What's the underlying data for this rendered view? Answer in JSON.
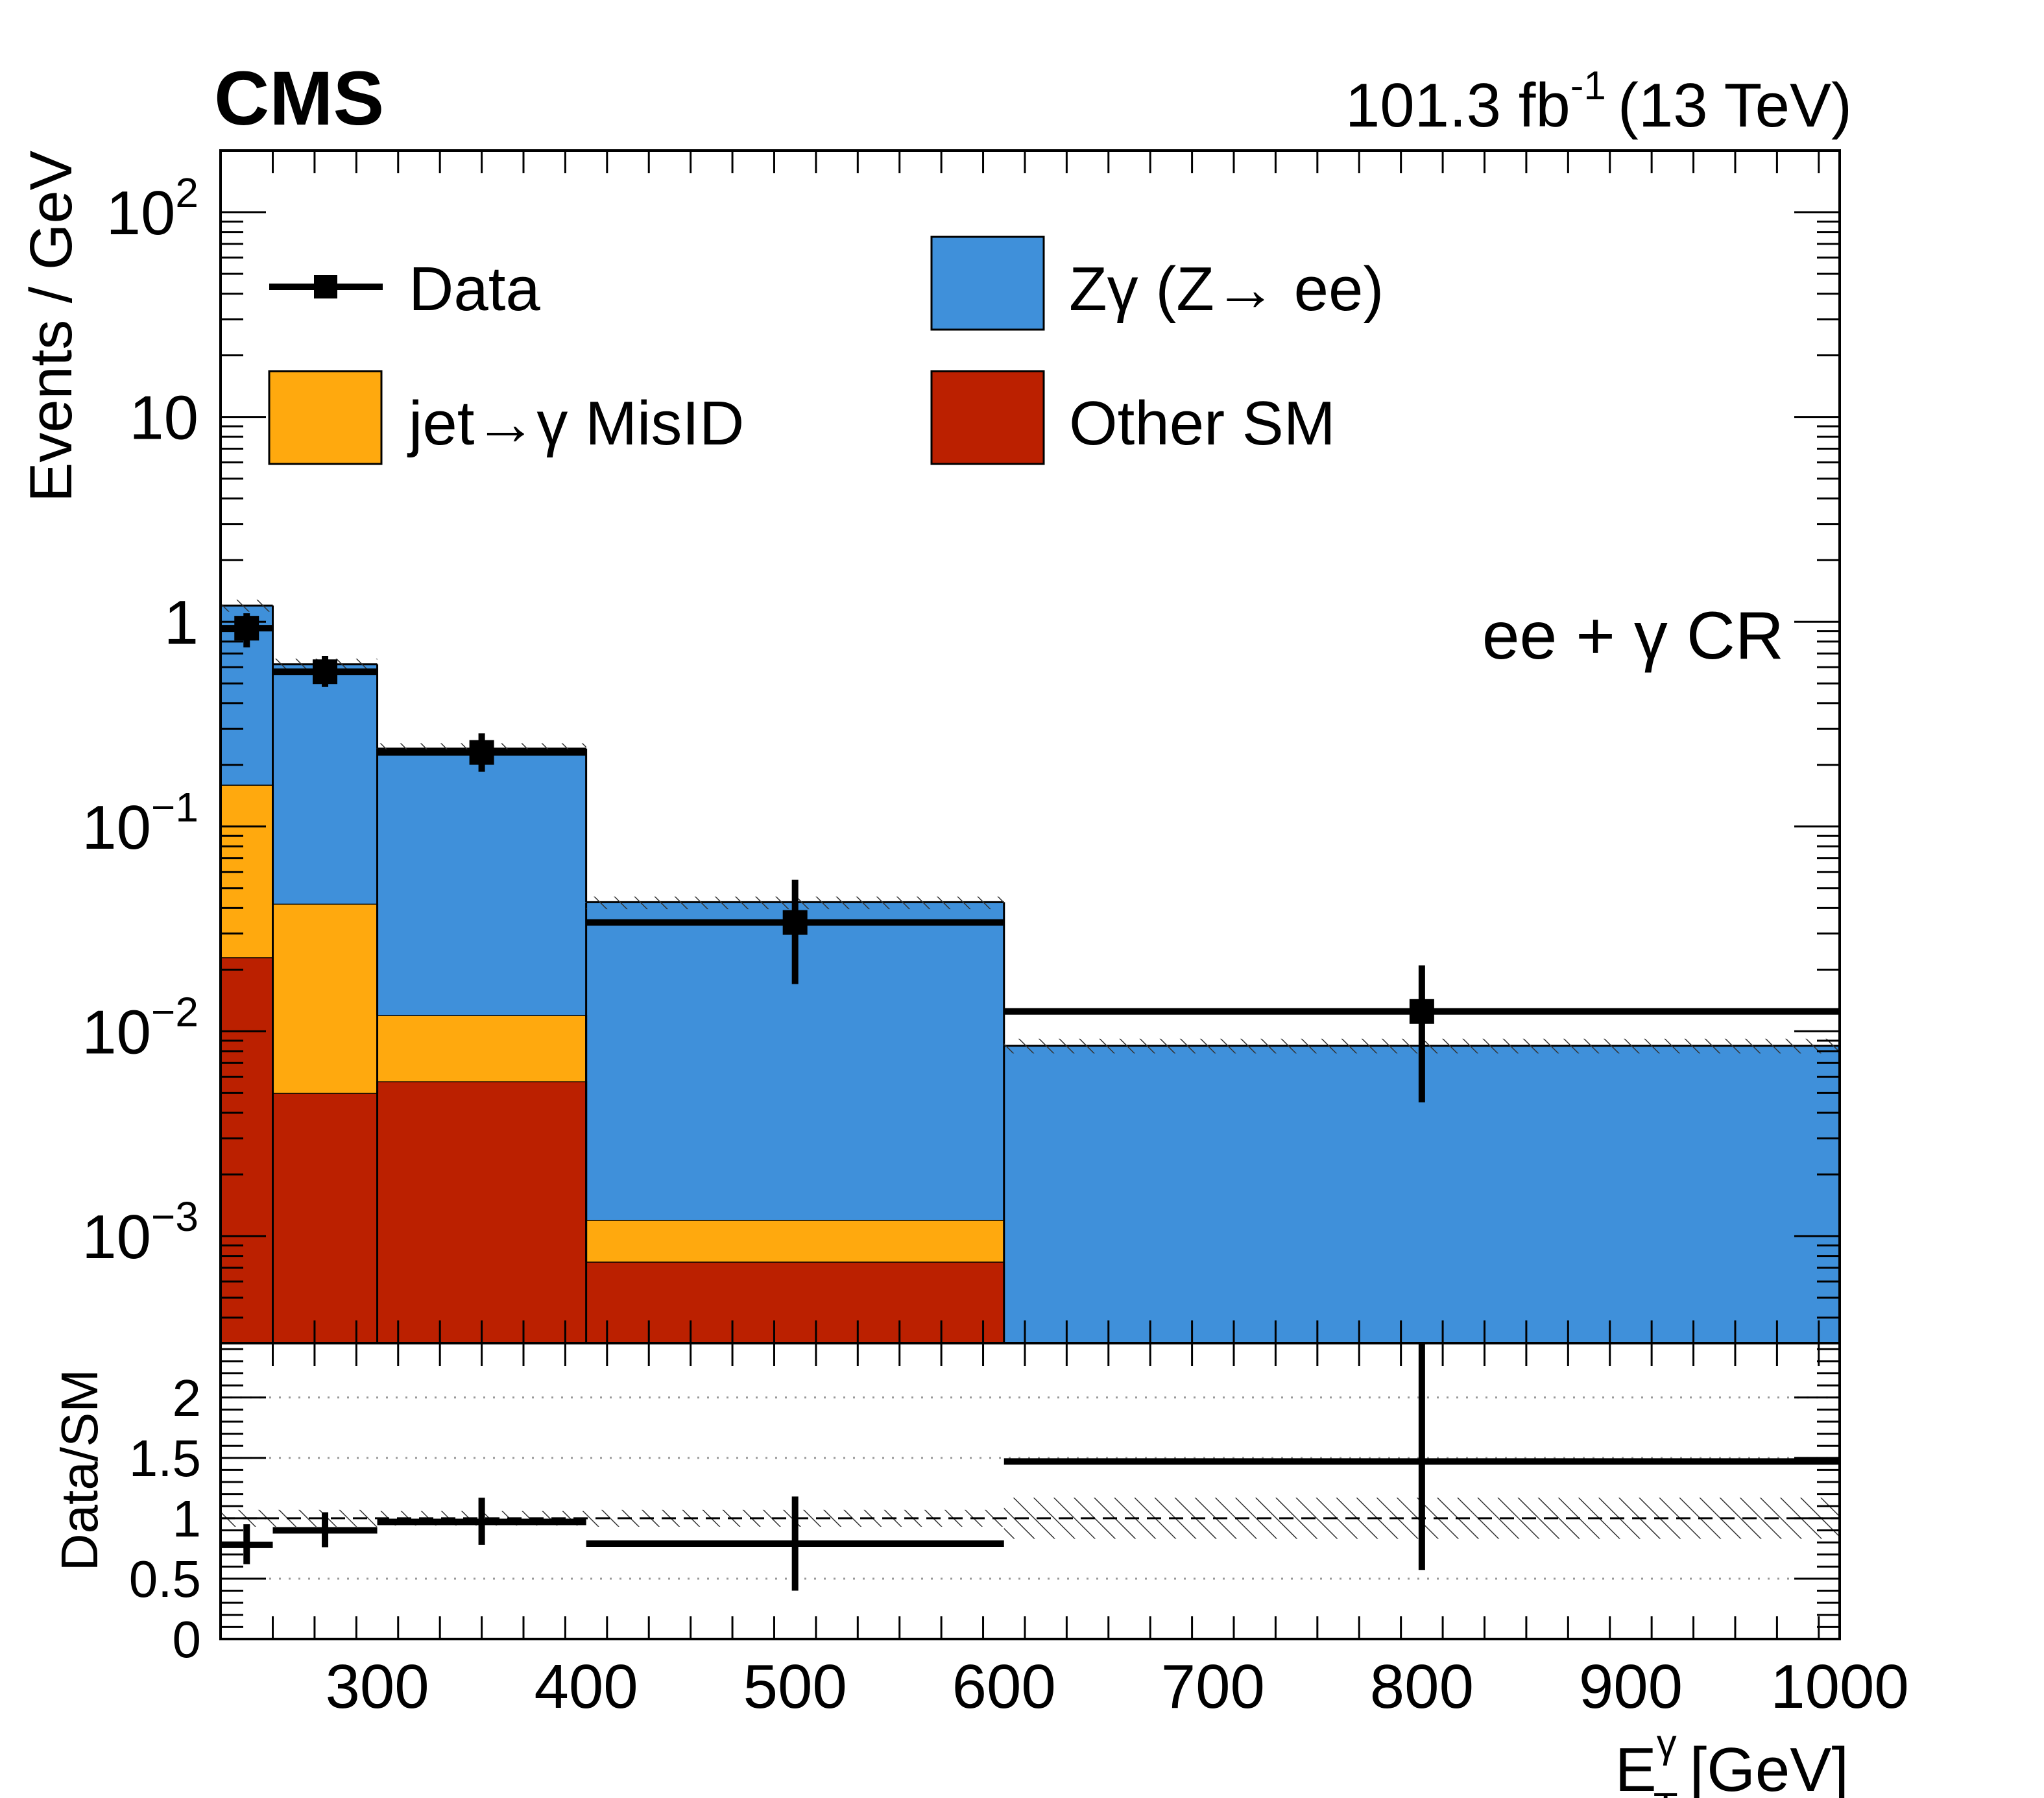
{
  "header": {
    "experiment": "CMS",
    "lumi_value": "101.3 fb",
    "lumi_exp": "-1",
    "energy": "(13 TeV)"
  },
  "region_label": "ee + γ CR",
  "legend": {
    "data": "Data",
    "zgamma": "Zγ (Z→ ee)",
    "misid": "jet→γ MisID",
    "othersm": "Other SM"
  },
  "chart_data": [
    {
      "type": "bar",
      "stacked": true,
      "yscale": "log",
      "ylabel": "Events / GeV",
      "ylim": [
        0.0003,
        200
      ],
      "xlim": [
        225,
        1000
      ],
      "bins": [
        [
          225,
          250
        ],
        [
          250,
          300
        ],
        [
          300,
          400
        ],
        [
          400,
          600
        ],
        [
          600,
          1000
        ]
      ],
      "yticks": [
        {
          "value": 0.001,
          "base": "10",
          "exp": "−3"
        },
        {
          "value": 0.01,
          "base": "10",
          "exp": "−2"
        },
        {
          "value": 0.1,
          "base": "10",
          "exp": "−1"
        },
        {
          "value": 1,
          "base": "1",
          "exp": ""
        },
        {
          "value": 10,
          "base": "10",
          "exp": ""
        },
        {
          "value": 100,
          "base": "10",
          "exp": "2"
        }
      ],
      "series": [
        {
          "name": "Other SM",
          "color": "#bb2000",
          "values": [
            0.023,
            0.005,
            0.0057,
            0.00075,
            0.0
          ]
        },
        {
          "name": "jet→γ MisID",
          "color": "#ffa90e",
          "values": [
            0.137,
            0.037,
            0.0063,
            0.00045,
            0.0
          ]
        },
        {
          "name": "Zγ (Z→ ee)",
          "color": "#3f90da",
          "values": [
            1.04,
            0.578,
            0.228,
            0.0415,
            0.0085
          ]
        }
      ],
      "total_mc": [
        1.2,
        0.62,
        0.24,
        0.0425,
        0.0085
      ],
      "mc_uncertainty": [
        [
          1.12,
          1.28
        ],
        [
          0.58,
          0.66
        ],
        [
          0.225,
          0.255
        ],
        [
          0.0395,
          0.0455
        ],
        [
          0.0078,
          0.0092
        ]
      ],
      "data": {
        "name": "Data",
        "x": [
          237.5,
          275,
          350,
          500,
          800
        ],
        "y": [
          0.93,
          0.57,
          0.23,
          0.034,
          0.0125
        ],
        "yerr_low": [
          0.75,
          0.48,
          0.185,
          0.017,
          0.0045
        ],
        "yerr_high": [
          1.1,
          0.68,
          0.285,
          0.055,
          0.021
        ]
      }
    },
    {
      "type": "line",
      "ylabel": "Data/SM",
      "xlabel_main": "E",
      "xlabel_sub": "T",
      "xlabel_sup": "γ",
      "xlabel_unit": "[GeV]",
      "ylim": [
        0,
        2.45
      ],
      "xlim": [
        225,
        1000
      ],
      "xticks": [
        {
          "value": 300,
          "label": "300"
        },
        {
          "value": 400,
          "label": "400"
        },
        {
          "value": 500,
          "label": "500"
        },
        {
          "value": 600,
          "label": "600"
        },
        {
          "value": 700,
          "label": "700"
        },
        {
          "value": 800,
          "label": "800"
        },
        {
          "value": 900,
          "label": "900"
        },
        {
          "value": 1000,
          "label": "1000"
        }
      ],
      "yticks": [
        {
          "value": 0,
          "label": "0"
        },
        {
          "value": 0.5,
          "label": "0.5"
        },
        {
          "value": 1,
          "label": "1"
        },
        {
          "value": 1.5,
          "label": "1.5"
        },
        {
          "value": 2,
          "label": "2"
        }
      ],
      "gridlines": [
        0.5,
        1.5,
        2
      ],
      "reference_line": 1,
      "uncertainty_band": [
        [
          0.93,
          1.07
        ],
        [
          0.93,
          1.07
        ],
        [
          0.94,
          1.06
        ],
        [
          0.93,
          1.07
        ],
        [
          0.83,
          1.17
        ]
      ],
      "ratio": {
        "x": [
          237.5,
          275,
          350,
          500,
          800
        ],
        "y": [
          0.78,
          0.9,
          0.97,
          0.79,
          1.47
        ],
        "yerr_low": [
          0.62,
          0.76,
          0.78,
          0.4,
          0.57
        ],
        "yerr_high": [
          0.95,
          1.05,
          1.17,
          1.18,
          2.45
        ]
      }
    }
  ]
}
